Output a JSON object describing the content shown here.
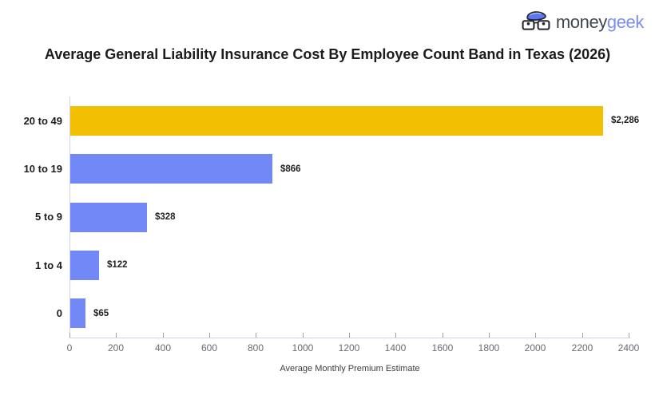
{
  "logo": {
    "icon": "geek-glasses-icon",
    "text_primary": "money",
    "text_secondary": "geek"
  },
  "title": "Average General Liability Insurance Cost By Employee Count Band in Texas (2026)",
  "chart_data": {
    "type": "bar",
    "orientation": "horizontal",
    "title": "Average General Liability Insurance Cost By Employee Count Band in Texas (2026)",
    "categories": [
      "20 to 49",
      "10 to 19",
      "5 to 9",
      "1 to 4",
      "0"
    ],
    "values": [
      2286,
      866,
      328,
      122,
      65
    ],
    "value_labels": [
      "$2,286",
      "$866",
      "$328",
      "$122",
      "$65"
    ],
    "bar_colors": [
      "#F2BF02",
      "#7388F7",
      "#7388F7",
      "#7388F7",
      "#7388F7"
    ],
    "xlabel": "Average Monthly Premium Estimate",
    "ylabel": "",
    "xlim": [
      0,
      2400
    ],
    "x_ticks": [
      0,
      200,
      400,
      600,
      800,
      1000,
      1200,
      1400,
      1600,
      1800,
      2000,
      2200,
      2400
    ],
    "grid": false,
    "legend": false,
    "colors": {
      "highlight_bar": "#F2BF02",
      "default_bar": "#7388F7",
      "axis_line": "#ccd4ec",
      "tick_label": "#666b70",
      "title_text": "#1c1c1c"
    }
  }
}
